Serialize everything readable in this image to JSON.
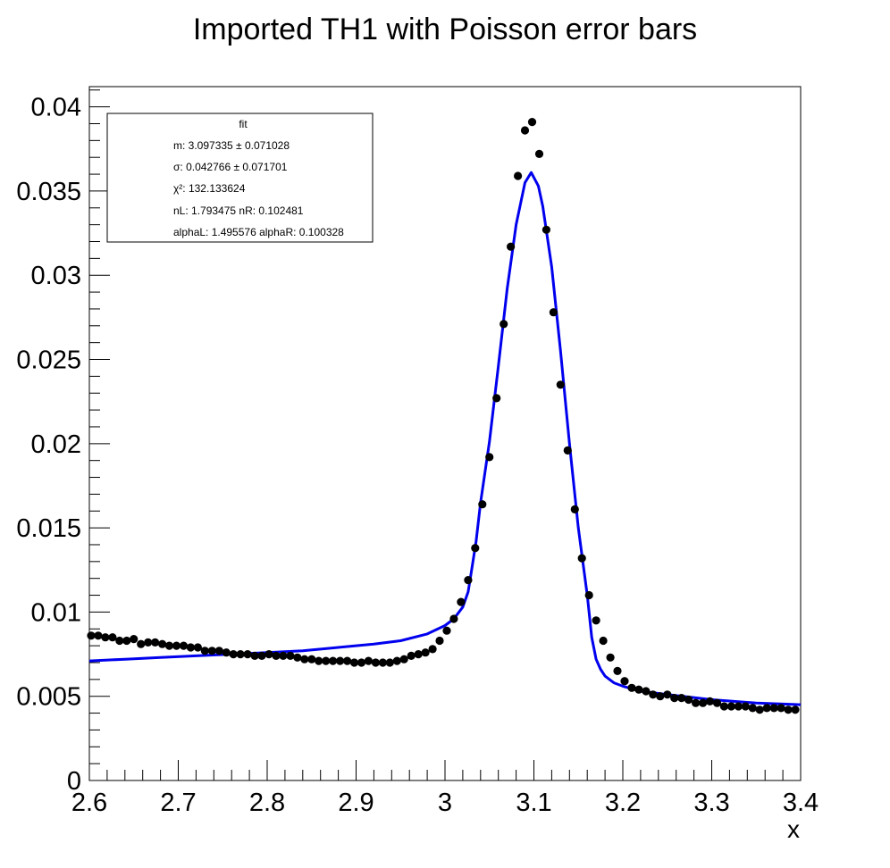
{
  "chart_data": {
    "type": "scatter",
    "title": "Imported TH1 with Poisson error bars",
    "xlabel": "x",
    "ylabel": "",
    "xlim": [
      2.6,
      3.4
    ],
    "ylim": [
      0,
      0.0412
    ],
    "x_ticks": [
      "2.6",
      "2.7",
      "2.8",
      "2.9",
      "3",
      "3.1",
      "3.2",
      "3.3",
      "3.4"
    ],
    "y_ticks": [
      "0",
      "0.005",
      "0.01",
      "0.015",
      "0.02",
      "0.025",
      "0.03",
      "0.035",
      "0.04"
    ],
    "grid": false,
    "series": [
      {
        "kind": "points",
        "color": "#000000",
        "x": [
          2.602,
          2.61,
          2.618,
          2.626,
          2.634,
          2.642,
          2.65,
          2.658,
          2.666,
          2.674,
          2.682,
          2.69,
          2.698,
          2.706,
          2.714,
          2.722,
          2.73,
          2.738,
          2.746,
          2.754,
          2.762,
          2.77,
          2.778,
          2.786,
          2.794,
          2.802,
          2.81,
          2.818,
          2.826,
          2.834,
          2.842,
          2.85,
          2.858,
          2.866,
          2.874,
          2.882,
          2.89,
          2.898,
          2.906,
          2.914,
          2.922,
          2.93,
          2.938,
          2.946,
          2.954,
          2.962,
          2.97,
          2.978,
          2.986,
          2.994,
          3.002,
          3.01,
          3.018,
          3.026,
          3.034,
          3.042,
          3.05,
          3.058,
          3.066,
          3.074,
          3.082,
          3.09,
          3.098,
          3.106,
          3.114,
          3.122,
          3.13,
          3.138,
          3.146,
          3.154,
          3.162,
          3.17,
          3.178,
          3.186,
          3.194,
          3.202,
          3.21,
          3.218,
          3.226,
          3.234,
          3.242,
          3.25,
          3.258,
          3.266,
          3.274,
          3.282,
          3.29,
          3.298,
          3.306,
          3.314,
          3.322,
          3.33,
          3.338,
          3.346,
          3.354,
          3.362,
          3.37,
          3.378,
          3.386,
          3.394
        ],
        "y": [
          0.0086,
          0.0086,
          0.0085,
          0.0085,
          0.0083,
          0.0083,
          0.0084,
          0.0081,
          0.0082,
          0.0082,
          0.0081,
          0.008,
          0.008,
          0.008,
          0.0079,
          0.0079,
          0.0077,
          0.0077,
          0.0077,
          0.0076,
          0.0075,
          0.0075,
          0.0075,
          0.0074,
          0.0074,
          0.0075,
          0.0074,
          0.0074,
          0.0074,
          0.0073,
          0.0072,
          0.0072,
          0.0071,
          0.0071,
          0.0071,
          0.0071,
          0.0071,
          0.007,
          0.007,
          0.0071,
          0.007,
          0.007,
          0.007,
          0.0071,
          0.0072,
          0.0074,
          0.0075,
          0.0076,
          0.0078,
          0.0083,
          0.0089,
          0.0096,
          0.0106,
          0.0119,
          0.0138,
          0.0164,
          0.0192,
          0.0227,
          0.0271,
          0.0317,
          0.0359,
          0.0386,
          0.0391,
          0.0372,
          0.0327,
          0.0278,
          0.0235,
          0.0196,
          0.0161,
          0.0132,
          0.011,
          0.0095,
          0.0083,
          0.0073,
          0.0065,
          0.0059,
          0.0055,
          0.0054,
          0.0053,
          0.0051,
          0.005,
          0.0051,
          0.0049,
          0.0049,
          0.0048,
          0.0046,
          0.0046,
          0.0047,
          0.0046,
          0.0044,
          0.0044,
          0.0044,
          0.0044,
          0.0043,
          0.0042,
          0.0043,
          0.0043,
          0.0043,
          0.0042,
          0.0042
        ]
      },
      {
        "kind": "line",
        "color": "#0000ee",
        "x": [
          2.6,
          2.64,
          2.68,
          2.72,
          2.76,
          2.8,
          2.84,
          2.88,
          2.92,
          2.95,
          2.98,
          3.0,
          3.01,
          3.02,
          3.026,
          3.03,
          3.035,
          3.04,
          3.05,
          3.06,
          3.07,
          3.08,
          3.09,
          3.097,
          3.105,
          3.11,
          3.12,
          3.13,
          3.14,
          3.15,
          3.16,
          3.165,
          3.17,
          3.175,
          3.18,
          3.19,
          3.2,
          3.22,
          3.25,
          3.3,
          3.35,
          3.4
        ],
        "y": [
          0.0071,
          0.0072,
          0.0073,
          0.0074,
          0.0075,
          0.0076,
          0.0077,
          0.0079,
          0.0081,
          0.0083,
          0.0087,
          0.0092,
          0.0096,
          0.0103,
          0.0112,
          0.0125,
          0.0142,
          0.0165,
          0.0201,
          0.0246,
          0.0292,
          0.033,
          0.0355,
          0.0361,
          0.0353,
          0.0341,
          0.0305,
          0.0255,
          0.02,
          0.015,
          0.011,
          0.0085,
          0.0072,
          0.0066,
          0.0062,
          0.0058,
          0.0056,
          0.0053,
          0.0051,
          0.0048,
          0.0046,
          0.0045
        ]
      }
    ],
    "stats_box": {
      "title": "fit",
      "lines": [
        "m: 3.097335 ± 0.071028",
        "σ: 0.042766 ± 0.071701",
        "χ²: 132.133624",
        "nL: 1.793475 nR: 0.102481",
        "alphaL: 1.495576 alphaR: 0.100328"
      ]
    }
  }
}
